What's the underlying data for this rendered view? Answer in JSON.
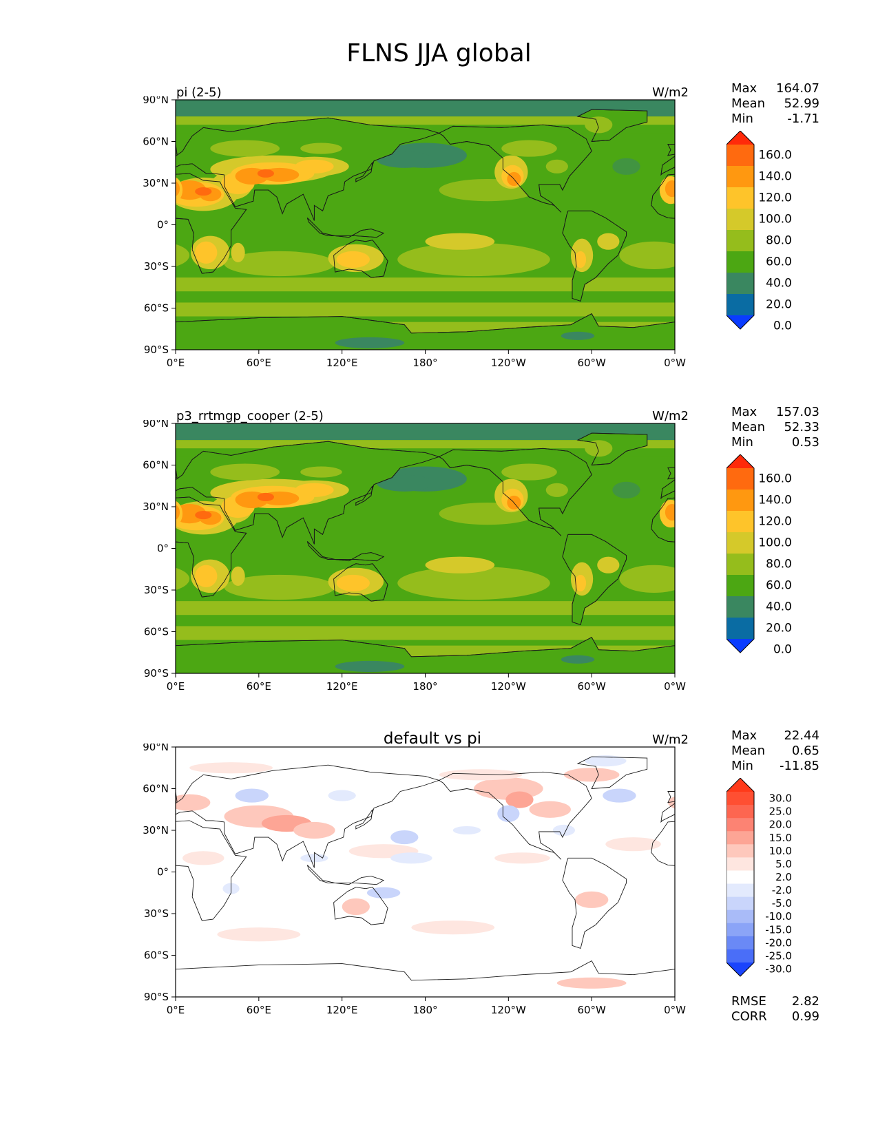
{
  "title": "FLNS JJA global",
  "lat_ticks": [
    "90°N",
    "60°N",
    "30°N",
    "0°",
    "30°S",
    "60°S",
    "90°S"
  ],
  "lon_ticks": [
    "0°E",
    "60°E",
    "120°E",
    "180°",
    "120°W",
    "60°W",
    "0°W"
  ],
  "panels": [
    {
      "title": "pi (2-5)",
      "units": "W/m2",
      "stats": {
        "max_label": "Max",
        "max": "164.07",
        "mean_label": "Mean",
        "mean": "52.99",
        "min_label": "Min",
        "min": "-1.71"
      },
      "colorbar": {
        "levels": [
          "160.0",
          "140.0",
          "120.0",
          "100.0",
          "80.0",
          "60.0",
          "40.0",
          "20.0",
          "0.0"
        ],
        "colors": [
          "#ff2a0a",
          "#ff6a0f",
          "#ff9810",
          "#fec42a",
          "#d5c92a",
          "#95bd1c",
          "#4ca713",
          "#3a8760",
          "#0a6ca3",
          "#0a3cff"
        ]
      }
    },
    {
      "title": "p3_rrtmgp_cooper (2-5)",
      "units": "W/m2",
      "stats": {
        "max_label": "Max",
        "max": "157.03",
        "mean_label": "Mean",
        "mean": "52.33",
        "min_label": "Min",
        "min": "0.53"
      },
      "colorbar": {
        "levels": [
          "160.0",
          "140.0",
          "120.0",
          "100.0",
          "80.0",
          "60.0",
          "40.0",
          "20.0",
          "0.0"
        ],
        "colors": [
          "#ff2a0a",
          "#ff6a0f",
          "#ff9810",
          "#fec42a",
          "#d5c92a",
          "#95bd1c",
          "#4ca713",
          "#3a8760",
          "#0a6ca3",
          "#0a3cff"
        ]
      }
    },
    {
      "title": "default vs pi",
      "units": "W/m2",
      "stats": {
        "max_label": "Max",
        "max": "22.44",
        "mean_label": "Mean",
        "mean": "0.65",
        "min_label": "Min",
        "min": "-11.85"
      },
      "metrics": {
        "rmse_label": "RMSE",
        "rmse": "2.82",
        "corr_label": "CORR",
        "corr": "0.99"
      },
      "colorbar": {
        "levels": [
          "30.0",
          "25.0",
          "20.0",
          "15.0",
          "10.0",
          "5.0",
          "2.0",
          "-2.0",
          "-5.0",
          "-10.0",
          "-15.0",
          "-20.0",
          "-25.0",
          "-30.0"
        ],
        "colors": [
          "#ff3a1a",
          "#ff4f32",
          "#fd6650",
          "#fc8373",
          "#fda595",
          "#fec8bc",
          "#fee6e0",
          "#ffffff",
          "#e3eafd",
          "#c9d5fb",
          "#a9bbf8",
          "#8ba4f7",
          "#6a89f6",
          "#4a6ef8",
          "#1a44fc"
        ]
      }
    }
  ],
  "chart_data": {
    "type": "heatmap",
    "title": "FLNS JJA global",
    "xlabel": "",
    "ylabel": "",
    "xlim": [
      0,
      360
    ],
    "ylim": [
      -90,
      90
    ],
    "x_ticks": [
      "0°E",
      "60°E",
      "120°E",
      "180°",
      "120°W",
      "60°W",
      "0°W"
    ],
    "y_ticks": [
      "90°N",
      "60°N",
      "30°N",
      "0°",
      "30°S",
      "60°S",
      "90°S"
    ],
    "panels": [
      {
        "name": "pi (2-5)",
        "units": "W/m2",
        "max": 164.07,
        "mean": 52.99,
        "min": -1.71,
        "contour_levels": [
          0,
          20,
          40,
          60,
          80,
          100,
          120,
          140,
          160
        ]
      },
      {
        "name": "p3_rrtmgp_cooper (2-5)",
        "units": "W/m2",
        "max": 157.03,
        "mean": 52.33,
        "min": 0.53,
        "contour_levels": [
          0,
          20,
          40,
          60,
          80,
          100,
          120,
          140,
          160
        ]
      },
      {
        "name": "default vs pi",
        "units": "W/m2",
        "max": 22.44,
        "mean": 0.65,
        "min": -11.85,
        "rmse": 2.82,
        "corr": 0.99,
        "contour_levels": [
          -30,
          -25,
          -20,
          -15,
          -10,
          -5,
          -2,
          2,
          5,
          10,
          15,
          20,
          25,
          30
        ]
      }
    ]
  }
}
